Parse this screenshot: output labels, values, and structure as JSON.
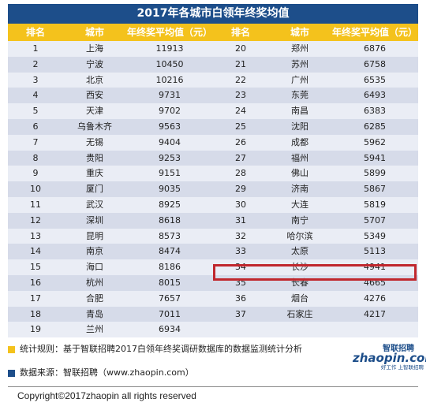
{
  "title": "2017年各城市白领年终奖均值",
  "headers": [
    "排名",
    "城市",
    "年终奖平均值（元）",
    "排名",
    "城市",
    "年终奖平均值（元）"
  ],
  "left_rows": [
    [
      "1",
      "上海",
      "11913"
    ],
    [
      "2",
      "宁波",
      "10450"
    ],
    [
      "3",
      "北京",
      "10216"
    ],
    [
      "4",
      "西安",
      "9731"
    ],
    [
      "5",
      "天津",
      "9702"
    ],
    [
      "6",
      "乌鲁木齐",
      "9563"
    ],
    [
      "7",
      "无锡",
      "9404"
    ],
    [
      "8",
      "贵阳",
      "9253"
    ],
    [
      "9",
      "重庆",
      "9151"
    ],
    [
      "10",
      "厦门",
      "9035"
    ],
    [
      "11",
      "武汉",
      "8925"
    ],
    [
      "12",
      "深圳",
      "8618"
    ],
    [
      "13",
      "昆明",
      "8573"
    ],
    [
      "14",
      "南京",
      "8474"
    ],
    [
      "15",
      "海口",
      "8186"
    ],
    [
      "16",
      "杭州",
      "8015"
    ],
    [
      "17",
      "合肥",
      "7657"
    ],
    [
      "18",
      "青岛",
      "7011"
    ],
    [
      "19",
      "兰州",
      "6934"
    ]
  ],
  "right_rows": [
    [
      "20",
      "郑州",
      "6876"
    ],
    [
      "21",
      "苏州",
      "6758"
    ],
    [
      "22",
      "广州",
      "6535"
    ],
    [
      "23",
      "东莞",
      "6493"
    ],
    [
      "24",
      "南昌",
      "6383"
    ],
    [
      "25",
      "沈阳",
      "6285"
    ],
    [
      "26",
      "成都",
      "5962"
    ],
    [
      "27",
      "福州",
      "5941"
    ],
    [
      "28",
      "佛山",
      "5899"
    ],
    [
      "29",
      "济南",
      "5867"
    ],
    [
      "30",
      "大连",
      "5819"
    ],
    [
      "31",
      "南宁",
      "5707"
    ],
    [
      "32",
      "哈尔滨",
      "5349"
    ],
    [
      "33",
      "太原",
      "5113"
    ],
    [
      "34",
      "长沙",
      "4941"
    ],
    [
      "35",
      "长春",
      "4665"
    ],
    [
      "36",
      "烟台",
      "4276"
    ],
    [
      "37",
      "石家庄",
      "4217"
    ],
    [
      "",
      "",
      ""
    ]
  ],
  "footer": {
    "rule": "统计规则：基于智联招聘2017白领年终奖调研数据库的数据监测统计分析",
    "source": "数据来源：智联招聘（www.zhaopin.com）"
  },
  "logo": {
    "main": "zhaopin.com",
    "cn": "智联招聘",
    "slogan": "好工作 上智联招聘"
  },
  "copyright": "Copyright©2017zhaopin all rights reserved",
  "colors": {
    "title_bg": "#1d4e8a",
    "header_bg": "#f4c21c",
    "highlight": "#c0272d"
  }
}
